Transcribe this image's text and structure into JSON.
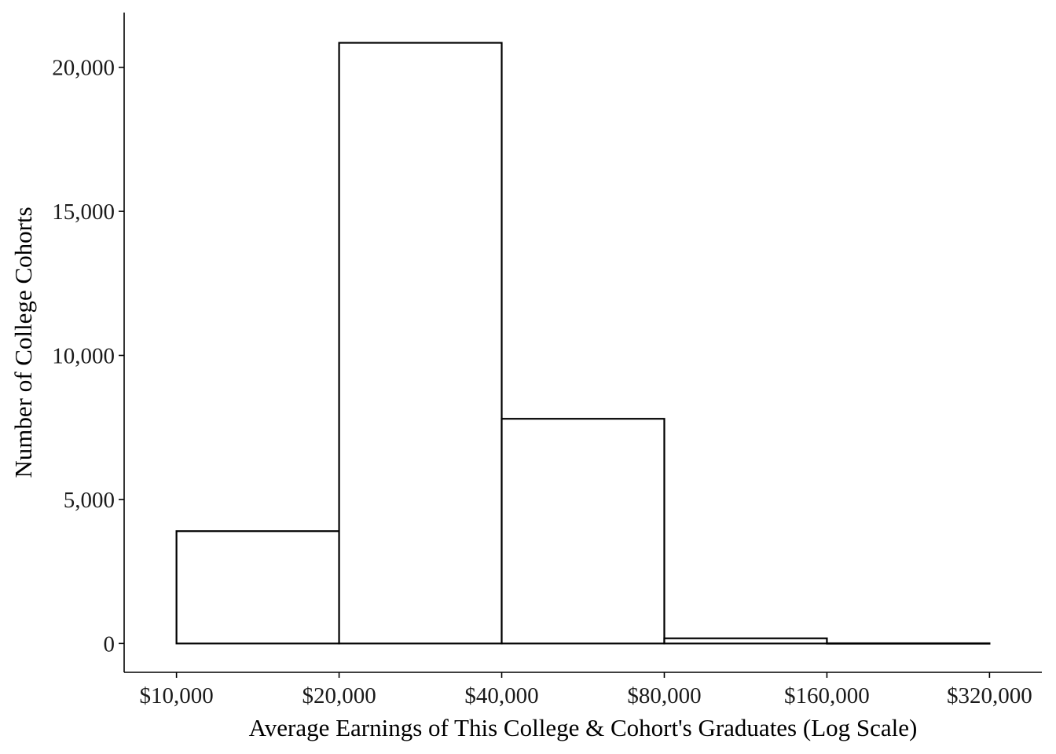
{
  "chart_data": {
    "type": "bar",
    "histogram": true,
    "x_scale": "log",
    "bins": [
      {
        "from": 10000,
        "to": 20000,
        "count": 3900
      },
      {
        "from": 20000,
        "to": 40000,
        "count": 20850
      },
      {
        "from": 40000,
        "to": 80000,
        "count": 7800
      },
      {
        "from": 80000,
        "to": 160000,
        "count": 180
      },
      {
        "from": 160000,
        "to": 320000,
        "count": 8
      }
    ],
    "x_ticks": [
      10000,
      20000,
      40000,
      80000,
      160000,
      320000
    ],
    "x_tick_labels": [
      "$10,000",
      "$20,000",
      "$40,000",
      "$80,000",
      "$160,000",
      "$320,000"
    ],
    "y_ticks": [
      0,
      5000,
      10000,
      15000,
      20000
    ],
    "y_tick_labels": [
      "0",
      "5,000",
      "10,000",
      "15,000",
      "20,000"
    ],
    "xlim": [
      8000,
      400000
    ],
    "ylim": [
      -1000,
      21900
    ],
    "xlabel": "Average Earnings of This College & Cohort's Graduates (Log Scale)",
    "ylabel": "Number of College Cohorts",
    "title": "",
    "grid": false,
    "colors": {
      "bar_fill": "#ffffff",
      "bar_stroke": "#000000",
      "axis": "#000000",
      "text": "#1a1a1a"
    }
  }
}
